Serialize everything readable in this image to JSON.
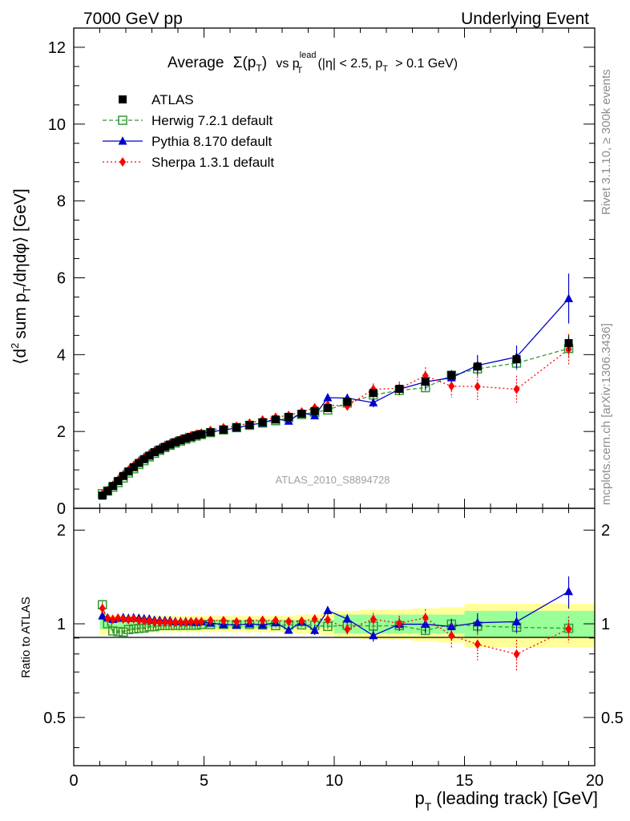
{
  "header": {
    "left": "7000 GeV pp",
    "right": "Underlying Event"
  },
  "side_texts": {
    "rivet": "Rivet 3.1.10, ≥ 300k events",
    "mcplots": "mcplots.cern.ch [arXiv:1306.3436]"
  },
  "chart_data": {
    "type": "scatter",
    "title": {
      "main": "Average",
      "sigma": "Σ(p",
      "sigma_sub": "T",
      "sigma_end": ")",
      "vs": "vs p",
      "sup": "lead",
      "sub": "T",
      "cut_a": "(|η| < 2.5, p",
      "cut_sub": "T",
      "cut_b": "> 0.1 GeV)"
    },
    "analysis_id": "ATLAS_2010_S8894728",
    "xlabel": {
      "p": "p",
      "sub": "T",
      "rest": "(leading track) [GeV]"
    },
    "ylabel": {
      "a": "⟨d",
      "sup": "2",
      "b": "sum p",
      "sub": "T",
      "c": "/dηdφ⟩ [GeV]"
    },
    "ratio_ylabel": "Ratio to ATLAS",
    "xlim": [
      0,
      20
    ],
    "ylim_main": [
      0,
      12.5
    ],
    "ylim_ratio": [
      0.35,
      2.35
    ],
    "ratio_log_scale": true,
    "x_ticks": [
      "0",
      "5",
      "10",
      "15",
      "20"
    ],
    "y_ticks_main": [
      "0",
      "2",
      "4",
      "6",
      "8",
      "10",
      "12"
    ],
    "y_ticks_ratio": [
      "0.5",
      "1",
      "2"
    ],
    "legend_position": "top-left",
    "series": [
      {
        "name": "ATLAS",
        "color": "#000000",
        "marker": "square-filled",
        "x": [
          1.1,
          1.3,
          1.5,
          1.7,
          1.9,
          2.1,
          2.3,
          2.5,
          2.7,
          2.9,
          3.1,
          3.3,
          3.5,
          3.7,
          3.9,
          4.1,
          4.3,
          4.5,
          4.7,
          4.9,
          5.25,
          5.75,
          6.25,
          6.75,
          7.25,
          7.75,
          8.25,
          8.75,
          9.25,
          9.75,
          10.5,
          11.5,
          12.5,
          13.5,
          14.5,
          15.5,
          17.0,
          19.0
        ],
        "y": [
          0.33,
          0.45,
          0.58,
          0.71,
          0.84,
          0.96,
          1.07,
          1.18,
          1.28,
          1.37,
          1.46,
          1.53,
          1.6,
          1.66,
          1.72,
          1.77,
          1.82,
          1.86,
          1.9,
          1.93,
          1.98,
          2.05,
          2.11,
          2.17,
          2.24,
          2.31,
          2.38,
          2.46,
          2.53,
          2.61,
          2.77,
          3.0,
          3.11,
          3.3,
          3.47,
          3.69,
          3.88,
          4.3
        ],
        "err": [
          0.02,
          0.02,
          0.02,
          0.02,
          0.02,
          0.02,
          0.02,
          0.02,
          0.02,
          0.02,
          0.02,
          0.02,
          0.02,
          0.02,
          0.02,
          0.02,
          0.02,
          0.02,
          0.02,
          0.02,
          0.02,
          0.03,
          0.03,
          0.03,
          0.03,
          0.03,
          0.04,
          0.04,
          0.04,
          0.05,
          0.05,
          0.06,
          0.07,
          0.08,
          0.1,
          0.12,
          0.15,
          0.2
        ]
      },
      {
        "name": "Herwig 7.2.1 default",
        "color": "#339933",
        "marker": "square-open",
        "line": "dashed",
        "x": [
          1.1,
          1.3,
          1.5,
          1.7,
          1.9,
          2.1,
          2.3,
          2.5,
          2.7,
          2.9,
          3.1,
          3.3,
          3.5,
          3.7,
          3.9,
          4.1,
          4.3,
          4.5,
          4.7,
          4.9,
          5.25,
          5.75,
          6.25,
          6.75,
          7.25,
          7.75,
          8.25,
          8.75,
          9.25,
          9.75,
          10.5,
          11.5,
          12.5,
          13.5,
          14.5,
          15.5,
          17.0,
          19.0
        ],
        "y": [
          0.38,
          0.45,
          0.55,
          0.67,
          0.79,
          0.92,
          1.03,
          1.14,
          1.24,
          1.34,
          1.43,
          1.51,
          1.58,
          1.64,
          1.7,
          1.75,
          1.8,
          1.84,
          1.88,
          1.92,
          1.97,
          2.04,
          2.1,
          2.16,
          2.22,
          2.28,
          2.36,
          2.44,
          2.5,
          2.56,
          2.74,
          2.95,
          3.07,
          3.14,
          3.46,
          3.63,
          3.78,
          4.16
        ],
        "err": [
          0.01,
          0.01,
          0.01,
          0.01,
          0.01,
          0.01,
          0.01,
          0.01,
          0.01,
          0.01,
          0.01,
          0.01,
          0.01,
          0.01,
          0.01,
          0.01,
          0.01,
          0.01,
          0.01,
          0.02,
          0.02,
          0.02,
          0.02,
          0.02,
          0.03,
          0.03,
          0.03,
          0.04,
          0.04,
          0.05,
          0.05,
          0.07,
          0.09,
          0.11,
          0.13,
          0.15,
          0.18,
          0.25
        ]
      },
      {
        "name": "Pythia 8.170 default",
        "color": "#0000cc",
        "marker": "triangle-filled",
        "line": "solid",
        "x": [
          1.1,
          1.3,
          1.5,
          1.7,
          1.9,
          2.1,
          2.3,
          2.5,
          2.7,
          2.9,
          3.1,
          3.3,
          3.5,
          3.7,
          3.9,
          4.1,
          4.3,
          4.5,
          4.7,
          4.9,
          5.25,
          5.75,
          6.25,
          6.75,
          7.25,
          7.75,
          8.25,
          8.75,
          9.25,
          9.75,
          10.5,
          11.5,
          12.5,
          13.5,
          14.5,
          15.5,
          17.0,
          19.0
        ],
        "y": [
          0.35,
          0.47,
          0.6,
          0.74,
          0.88,
          1.0,
          1.12,
          1.23,
          1.33,
          1.42,
          1.5,
          1.57,
          1.64,
          1.7,
          1.75,
          1.8,
          1.85,
          1.89,
          1.92,
          1.96,
          1.99,
          2.04,
          2.09,
          2.17,
          2.22,
          2.33,
          2.27,
          2.49,
          2.41,
          2.88,
          2.87,
          2.75,
          3.1,
          3.29,
          3.4,
          3.72,
          3.94,
          5.46
        ],
        "err": [
          0.01,
          0.01,
          0.01,
          0.01,
          0.01,
          0.01,
          0.01,
          0.01,
          0.01,
          0.01,
          0.01,
          0.01,
          0.01,
          0.01,
          0.02,
          0.02,
          0.02,
          0.02,
          0.02,
          0.02,
          0.02,
          0.03,
          0.03,
          0.04,
          0.04,
          0.05,
          0.06,
          0.07,
          0.08,
          0.09,
          0.1,
          0.12,
          0.15,
          0.2,
          0.2,
          0.27,
          0.3,
          0.65
        ]
      },
      {
        "name": "Sherpa 1.3.1 default",
        "color": "#ff0000",
        "marker": "diamond-filled",
        "line": "dotted",
        "x": [
          1.1,
          1.3,
          1.5,
          1.7,
          1.9,
          2.1,
          2.3,
          2.5,
          2.7,
          2.9,
          3.1,
          3.3,
          3.5,
          3.7,
          3.9,
          4.1,
          4.3,
          4.5,
          4.7,
          4.9,
          5.25,
          5.75,
          6.25,
          6.75,
          7.25,
          7.75,
          8.25,
          8.75,
          9.25,
          9.75,
          10.5,
          11.5,
          12.5,
          13.5,
          14.5,
          15.5,
          17.0,
          19.0
        ],
        "y": [
          0.37,
          0.47,
          0.6,
          0.74,
          0.87,
          0.99,
          1.11,
          1.21,
          1.31,
          1.4,
          1.48,
          1.55,
          1.62,
          1.68,
          1.74,
          1.79,
          1.84,
          1.89,
          1.93,
          1.96,
          2.03,
          2.1,
          2.14,
          2.22,
          2.3,
          2.37,
          2.42,
          2.51,
          2.62,
          2.69,
          2.66,
          3.1,
          3.12,
          3.45,
          3.18,
          3.17,
          3.1,
          4.14
        ],
        "err": [
          0.01,
          0.01,
          0.01,
          0.01,
          0.01,
          0.01,
          0.01,
          0.01,
          0.01,
          0.01,
          0.01,
          0.01,
          0.01,
          0.01,
          0.02,
          0.02,
          0.02,
          0.02,
          0.02,
          0.02,
          0.03,
          0.03,
          0.04,
          0.04,
          0.05,
          0.06,
          0.07,
          0.08,
          0.09,
          0.1,
          0.12,
          0.15,
          0.18,
          0.22,
          0.3,
          0.35,
          0.35,
          0.4
        ]
      }
    ],
    "ratio_band": {
      "x_edges": [
        1.0,
        1.2,
        1.4,
        1.6,
        1.8,
        2.0,
        2.2,
        2.4,
        2.6,
        2.8,
        3.0,
        3.2,
        3.4,
        3.6,
        3.8,
        4.0,
        4.2,
        4.4,
        4.6,
        4.8,
        5.0,
        5.5,
        6.0,
        6.5,
        7.0,
        7.5,
        8.0,
        8.5,
        9.0,
        9.5,
        10.0,
        11.0,
        12.0,
        13.0,
        14.0,
        15.0,
        16.0,
        18.0,
        20.0
      ],
      "stat": [
        0.04,
        0.035,
        0.03,
        0.03,
        0.03,
        0.03,
        0.03,
        0.03,
        0.03,
        0.03,
        0.03,
        0.03,
        0.03,
        0.03,
        0.03,
        0.03,
        0.03,
        0.03,
        0.03,
        0.03,
        0.03,
        0.03,
        0.03,
        0.03,
        0.03,
        0.03,
        0.03,
        0.03,
        0.03,
        0.03,
        0.07,
        0.07,
        0.07,
        0.07,
        0.07,
        0.1,
        0.1,
        0.1
      ],
      "total": [
        0.08,
        0.07,
        0.06,
        0.06,
        0.06,
        0.06,
        0.06,
        0.06,
        0.06,
        0.06,
        0.06,
        0.06,
        0.06,
        0.06,
        0.06,
        0.06,
        0.06,
        0.06,
        0.06,
        0.06,
        0.06,
        0.06,
        0.06,
        0.06,
        0.06,
        0.06,
        0.06,
        0.07,
        0.07,
        0.08,
        0.1,
        0.11,
        0.11,
        0.12,
        0.13,
        0.16,
        0.16,
        0.16
      ]
    }
  }
}
